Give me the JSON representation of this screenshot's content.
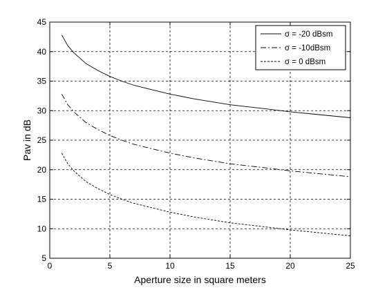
{
  "chart_data": {
    "type": "line",
    "title": "",
    "xlabel": "Aperture size in square meters",
    "ylabel": "Pav in dB",
    "xlim": [
      0,
      25
    ],
    "ylim": [
      5,
      45
    ],
    "xticks": [
      0,
      5,
      10,
      15,
      20,
      25
    ],
    "yticks": [
      5,
      10,
      15,
      20,
      25,
      30,
      35,
      40,
      45
    ],
    "grid": true,
    "legend_position": "top-right",
    "x": [
      1,
      1.5,
      2,
      3,
      4,
      5,
      6,
      7,
      8,
      10,
      12,
      15,
      18,
      20,
      22,
      25
    ],
    "series": [
      {
        "name": "σ = -20 dBsm",
        "line_style": "solid",
        "color": "#000000",
        "values": [
          42.8,
          41.0,
          39.8,
          38.0,
          36.8,
          35.8,
          35.0,
          34.3,
          33.8,
          32.8,
          32.0,
          31.0,
          30.3,
          29.8,
          29.4,
          28.8
        ]
      },
      {
        "name": "σ = -10dBsm",
        "line_style": "dashdot",
        "color": "#000000",
        "values": [
          32.8,
          31.0,
          29.8,
          28.0,
          26.8,
          25.8,
          25.0,
          24.3,
          23.8,
          22.8,
          22.0,
          21.0,
          20.3,
          19.8,
          19.4,
          18.8
        ]
      },
      {
        "name": "σ = 0 dBsm",
        "line_style": "dotted",
        "color": "#000000",
        "values": [
          22.8,
          21.0,
          19.8,
          18.0,
          16.8,
          15.8,
          15.0,
          14.3,
          13.8,
          12.8,
          12.0,
          11.0,
          10.3,
          9.8,
          9.4,
          8.8
        ]
      }
    ]
  }
}
